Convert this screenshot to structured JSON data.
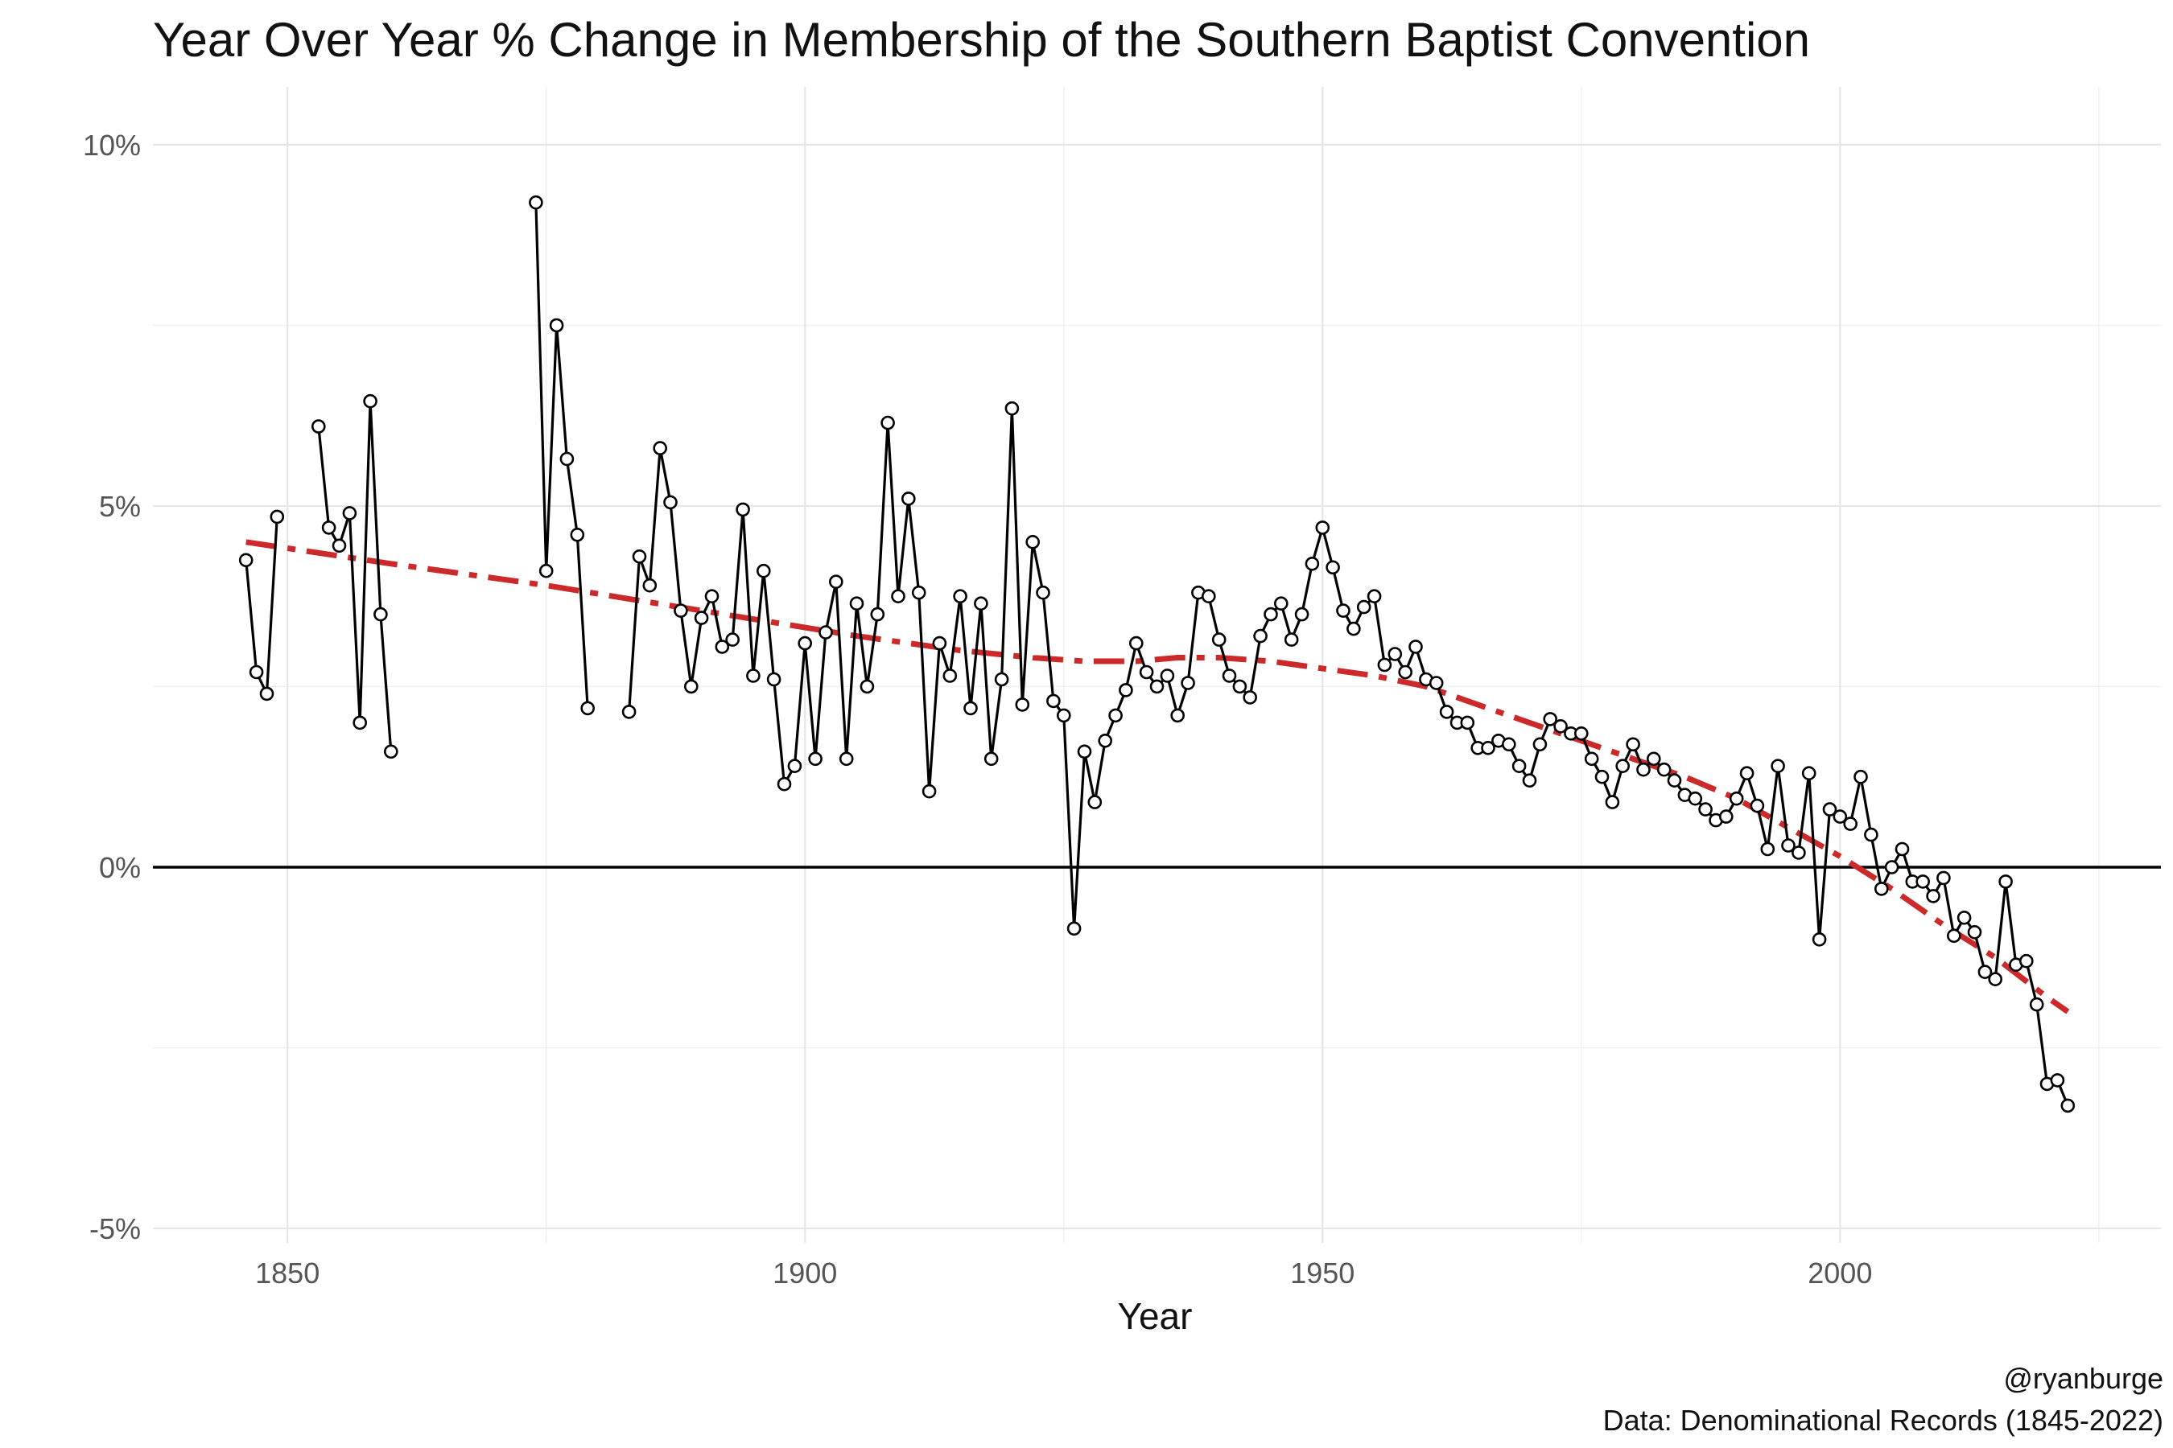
{
  "chart_data": {
    "type": "line",
    "title": "Year Over Year % Change in Membership of the Southern Baptist Convention",
    "xlabel": "Year",
    "ylabel": "",
    "xlim": [
      1837,
      2031
    ],
    "ylim": [
      -5.2,
      10.8
    ],
    "x_ticks": [
      1850,
      1900,
      1950,
      2000
    ],
    "y_ticks": [
      -5,
      0,
      5,
      10
    ],
    "y_tick_labels": [
      "-5%",
      "0%",
      "5%",
      "10%"
    ],
    "grid": true,
    "zero_line": true,
    "caption_lines": [
      "@ryanburge",
      "Data: Denominational Records (1845-2022)"
    ],
    "colors": {
      "line": "#000000",
      "point_fill": "#ffffff",
      "trend": "#cc2a2a",
      "zero_line": "#000000"
    },
    "series": [
      {
        "values": [
          [
            1846,
            4.25
          ],
          [
            1847,
            2.7
          ],
          [
            1848,
            2.4
          ],
          [
            1849,
            4.85
          ],
          [
            1850,
            null
          ],
          [
            1851,
            null
          ],
          [
            1852,
            null
          ],
          [
            1853,
            6.1
          ],
          [
            1854,
            4.7
          ],
          [
            1855,
            4.45
          ],
          [
            1856,
            4.9
          ],
          [
            1857,
            2.0
          ],
          [
            1858,
            6.45
          ],
          [
            1859,
            3.5
          ],
          [
            1860,
            1.6
          ],
          [
            1861,
            null
          ],
          [
            1862,
            null
          ],
          [
            1863,
            null
          ],
          [
            1864,
            null
          ],
          [
            1865,
            null
          ],
          [
            1866,
            null
          ],
          [
            1867,
            null
          ],
          [
            1868,
            null
          ],
          [
            1869,
            null
          ],
          [
            1870,
            null
          ],
          [
            1871,
            null
          ],
          [
            1872,
            null
          ],
          [
            1873,
            null
          ],
          [
            1874,
            9.2
          ],
          [
            1875,
            4.1
          ],
          [
            1876,
            7.5
          ],
          [
            1877,
            5.65
          ],
          [
            1878,
            4.6
          ],
          [
            1879,
            2.2
          ],
          [
            1880,
            null
          ],
          [
            1881,
            null
          ],
          [
            1882,
            null
          ],
          [
            1883,
            2.15
          ],
          [
            1884,
            4.3
          ],
          [
            1885,
            3.9
          ],
          [
            1886,
            5.8
          ],
          [
            1887,
            5.05
          ],
          [
            1888,
            3.55
          ],
          [
            1889,
            2.5
          ],
          [
            1890,
            3.45
          ],
          [
            1891,
            3.75
          ],
          [
            1892,
            3.05
          ],
          [
            1893,
            3.15
          ],
          [
            1894,
            4.95
          ],
          [
            1895,
            2.65
          ],
          [
            1896,
            4.1
          ],
          [
            1897,
            2.6
          ],
          [
            1898,
            1.15
          ],
          [
            1899,
            1.4
          ],
          [
            1900,
            3.1
          ],
          [
            1901,
            1.5
          ],
          [
            1902,
            3.25
          ],
          [
            1903,
            3.95
          ],
          [
            1904,
            1.5
          ],
          [
            1905,
            3.65
          ],
          [
            1906,
            2.5
          ],
          [
            1907,
            3.5
          ],
          [
            1908,
            6.15
          ],
          [
            1909,
            3.75
          ],
          [
            1910,
            5.1
          ],
          [
            1911,
            3.8
          ],
          [
            1912,
            1.05
          ],
          [
            1913,
            3.1
          ],
          [
            1914,
            2.65
          ],
          [
            1915,
            3.75
          ],
          [
            1916,
            2.2
          ],
          [
            1917,
            3.65
          ],
          [
            1918,
            1.5
          ],
          [
            1919,
            2.6
          ],
          [
            1920,
            6.35
          ],
          [
            1921,
            2.25
          ],
          [
            1922,
            4.5
          ],
          [
            1923,
            3.8
          ],
          [
            1924,
            2.3
          ],
          [
            1925,
            2.1
          ],
          [
            1926,
            -0.85
          ],
          [
            1927,
            1.6
          ],
          [
            1928,
            0.9
          ],
          [
            1929,
            1.75
          ],
          [
            1930,
            2.1
          ],
          [
            1931,
            2.45
          ],
          [
            1932,
            3.1
          ],
          [
            1933,
            2.7
          ],
          [
            1934,
            2.5
          ],
          [
            1935,
            2.65
          ],
          [
            1936,
            2.1
          ],
          [
            1937,
            2.55
          ],
          [
            1938,
            3.8
          ],
          [
            1939,
            3.75
          ],
          [
            1940,
            3.15
          ],
          [
            1941,
            2.65
          ],
          [
            1942,
            2.5
          ],
          [
            1943,
            2.35
          ],
          [
            1944,
            3.2
          ],
          [
            1945,
            3.5
          ],
          [
            1946,
            3.65
          ],
          [
            1947,
            3.15
          ],
          [
            1948,
            3.5
          ],
          [
            1949,
            4.2
          ],
          [
            1950,
            4.7
          ],
          [
            1951,
            4.15
          ],
          [
            1952,
            3.55
          ],
          [
            1953,
            3.3
          ],
          [
            1954,
            3.6
          ],
          [
            1955,
            3.75
          ],
          [
            1956,
            2.8
          ],
          [
            1957,
            2.95
          ],
          [
            1958,
            2.7
          ],
          [
            1959,
            3.05
          ],
          [
            1960,
            2.6
          ],
          [
            1961,
            2.55
          ],
          [
            1962,
            2.15
          ],
          [
            1963,
            2.0
          ],
          [
            1964,
            2.0
          ],
          [
            1965,
            1.65
          ],
          [
            1966,
            1.65
          ],
          [
            1967,
            1.75
          ],
          [
            1968,
            1.7
          ],
          [
            1969,
            1.4
          ],
          [
            1970,
            1.2
          ],
          [
            1971,
            1.7
          ],
          [
            1972,
            2.05
          ],
          [
            1973,
            1.95
          ],
          [
            1974,
            1.85
          ],
          [
            1975,
            1.85
          ],
          [
            1976,
            1.5
          ],
          [
            1977,
            1.25
          ],
          [
            1978,
            0.9
          ],
          [
            1979,
            1.4
          ],
          [
            1980,
            1.7
          ],
          [
            1981,
            1.35
          ],
          [
            1982,
            1.5
          ],
          [
            1983,
            1.35
          ],
          [
            1984,
            1.2
          ],
          [
            1985,
            1.0
          ],
          [
            1986,
            0.95
          ],
          [
            1987,
            0.8
          ],
          [
            1988,
            0.65
          ],
          [
            1989,
            0.7
          ],
          [
            1990,
            0.95
          ],
          [
            1991,
            1.3
          ],
          [
            1992,
            0.85
          ],
          [
            1993,
            0.25
          ],
          [
            1994,
            1.4
          ],
          [
            1995,
            0.3
          ],
          [
            1996,
            0.2
          ],
          [
            1997,
            1.3
          ],
          [
            1998,
            -1.0
          ],
          [
            1999,
            0.8
          ],
          [
            2000,
            0.7
          ],
          [
            2001,
            0.6
          ],
          [
            2002,
            1.25
          ],
          [
            2003,
            0.45
          ],
          [
            2004,
            -0.3
          ],
          [
            2005,
            0.0
          ],
          [
            2006,
            0.25
          ],
          [
            2007,
            -0.2
          ],
          [
            2008,
            -0.2
          ],
          [
            2009,
            -0.4
          ],
          [
            2010,
            -0.15
          ],
          [
            2011,
            -0.95
          ],
          [
            2012,
            -0.7
          ],
          [
            2013,
            -0.9
          ],
          [
            2014,
            -1.45
          ],
          [
            2015,
            -1.55
          ],
          [
            2016,
            -0.2
          ],
          [
            2017,
            -1.35
          ],
          [
            2018,
            -1.3
          ],
          [
            2019,
            -1.9
          ],
          [
            2020,
            -3.0
          ],
          [
            2021,
            -2.95
          ],
          [
            2022,
            -3.3
          ]
        ]
      }
    ],
    "trend": {
      "style": "dashed",
      "values": [
        [
          1846,
          4.5
        ],
        [
          1860,
          4.2
        ],
        [
          1875,
          3.9
        ],
        [
          1890,
          3.55
        ],
        [
          1905,
          3.2
        ],
        [
          1915,
          3.0
        ],
        [
          1922,
          2.9
        ],
        [
          1927,
          2.85
        ],
        [
          1932,
          2.85
        ],
        [
          1936,
          2.9
        ],
        [
          1940,
          2.9
        ],
        [
          1945,
          2.85
        ],
        [
          1950,
          2.75
        ],
        [
          1955,
          2.65
        ],
        [
          1960,
          2.5
        ],
        [
          1965,
          2.25
        ],
        [
          1970,
          2.0
        ],
        [
          1975,
          1.75
        ],
        [
          1980,
          1.5
        ],
        [
          1985,
          1.25
        ],
        [
          1990,
          0.95
        ],
        [
          1995,
          0.55
        ],
        [
          2000,
          0.15
        ],
        [
          2005,
          -0.3
        ],
        [
          2010,
          -0.8
        ],
        [
          2015,
          -1.25
        ],
        [
          2020,
          -1.8
        ],
        [
          2022,
          -2.0
        ]
      ]
    }
  }
}
